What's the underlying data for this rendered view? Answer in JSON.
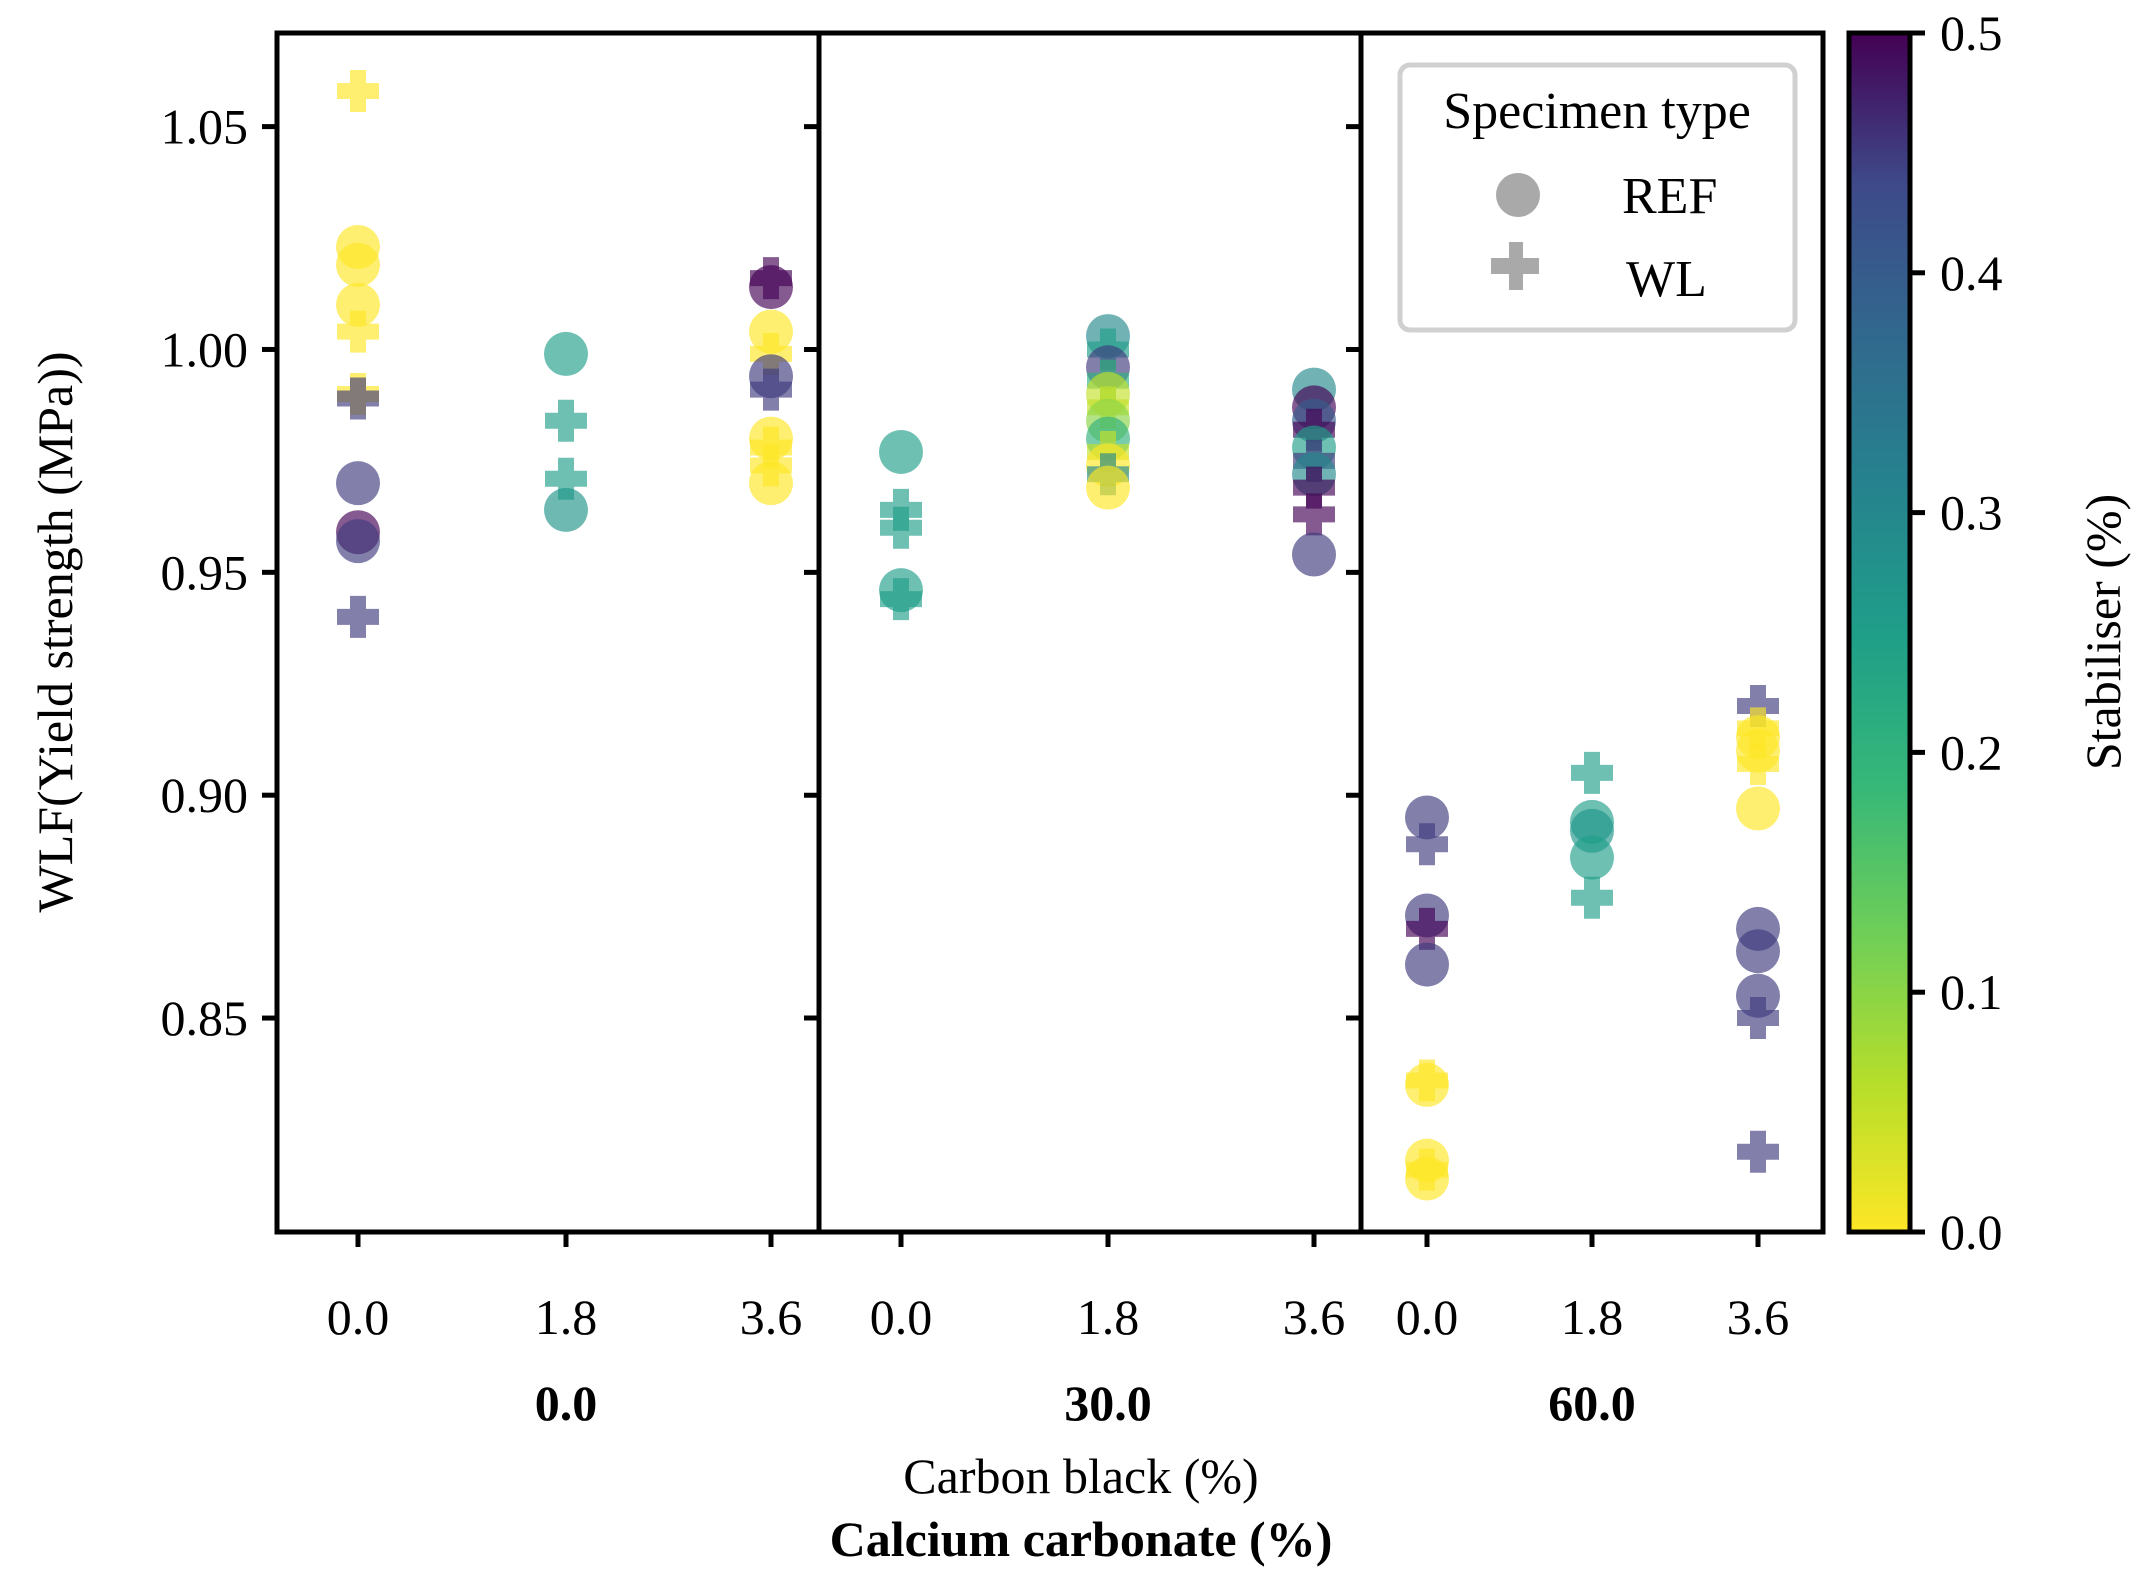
{
  "chart_data": {
    "type": "scatter",
    "ylabel": "WLF(Yield strength (MPa))",
    "xlabel_inner": "Carbon black (%)",
    "xlabel_outer": "Calcium carbonate (%)",
    "ylim": [
      0.802,
      1.071
    ],
    "yticks": [
      "0.85",
      "0.90",
      "0.95",
      "1.00",
      "1.05"
    ],
    "ytick_values": [
      0.85,
      0.9,
      0.95,
      1.0,
      1.05
    ],
    "groups": [
      "0.0",
      "30.0",
      "60.0"
    ],
    "subcategories": [
      "0.0",
      "1.8",
      "3.6"
    ],
    "legend": {
      "title": "Specimen type",
      "items": [
        {
          "label": "REF",
          "marker": "circle"
        },
        {
          "label": "WL",
          "marker": "plus"
        }
      ],
      "location": "upper-right of third panel"
    },
    "colorbar": {
      "label": "Stabiliser (%)",
      "range": [
        0.0,
        0.5
      ],
      "ticks": [
        "0.0",
        "0.1",
        "0.2",
        "0.3",
        "0.4",
        "0.5"
      ],
      "tick_values": [
        0.0,
        0.1,
        0.2,
        0.3,
        0.4,
        0.5
      ],
      "colormap": "viridis_r"
    },
    "points": [
      {
        "g": 0,
        "cb": 0,
        "t": "WL",
        "s": 0.0,
        "y": 1.058
      },
      {
        "g": 0,
        "cb": 0,
        "t": "REF",
        "s": 0.0,
        "y": 1.023
      },
      {
        "g": 0,
        "cb": 0,
        "t": "REF",
        "s": 0.0,
        "y": 1.019
      },
      {
        "g": 0,
        "cb": 0,
        "t": "REF",
        "s": 0.0,
        "y": 1.01
      },
      {
        "g": 0,
        "cb": 0,
        "t": "WL",
        "s": 0.0,
        "y": 1.004
      },
      {
        "g": 0,
        "cb": 0,
        "t": "WL",
        "s": 0.0,
        "y": 0.99
      },
      {
        "g": 0,
        "cb": 0,
        "t": "WL",
        "s": 0.45,
        "y": 0.989
      },
      {
        "g": 0,
        "cb": 0,
        "t": "REF",
        "s": 0.45,
        "y": 0.97
      },
      {
        "g": 0,
        "cb": 0,
        "t": "REF",
        "s": 0.5,
        "y": 0.959
      },
      {
        "g": 0,
        "cb": 0,
        "t": "REF",
        "s": 0.45,
        "y": 0.957
      },
      {
        "g": 0,
        "cb": 0,
        "t": "WL",
        "s": 0.45,
        "y": 0.94
      },
      {
        "g": 0,
        "cb": 1,
        "t": "REF",
        "s": 0.25,
        "y": 0.999
      },
      {
        "g": 0,
        "cb": 1,
        "t": "WL",
        "s": 0.25,
        "y": 0.984
      },
      {
        "g": 0,
        "cb": 1,
        "t": "WL",
        "s": 0.25,
        "y": 0.971
      },
      {
        "g": 0,
        "cb": 1,
        "t": "REF",
        "s": 0.27,
        "y": 0.964
      },
      {
        "g": 0,
        "cb": 2,
        "t": "WL",
        "s": 0.5,
        "y": 1.016
      },
      {
        "g": 0,
        "cb": 2,
        "t": "REF",
        "s": 0.5,
        "y": 1.014
      },
      {
        "g": 0,
        "cb": 2,
        "t": "REF",
        "s": 0.0,
        "y": 1.004
      },
      {
        "g": 0,
        "cb": 2,
        "t": "WL",
        "s": 0.0,
        "y": 0.999
      },
      {
        "g": 0,
        "cb": 2,
        "t": "REF",
        "s": 0.45,
        "y": 0.994
      },
      {
        "g": 0,
        "cb": 2,
        "t": "WL",
        "s": 0.45,
        "y": 0.991
      },
      {
        "g": 0,
        "cb": 2,
        "t": "REF",
        "s": 0.0,
        "y": 0.98
      },
      {
        "g": 0,
        "cb": 2,
        "t": "WL",
        "s": 0.0,
        "y": 0.978
      },
      {
        "g": 0,
        "cb": 2,
        "t": "WL",
        "s": 0.0,
        "y": 0.974
      },
      {
        "g": 0,
        "cb": 2,
        "t": "REF",
        "s": 0.0,
        "y": 0.97
      },
      {
        "g": 1,
        "cb": 0,
        "t": "REF",
        "s": 0.25,
        "y": 0.977
      },
      {
        "g": 1,
        "cb": 0,
        "t": "WL",
        "s": 0.25,
        "y": 0.964
      },
      {
        "g": 1,
        "cb": 0,
        "t": "WL",
        "s": 0.25,
        "y": 0.96
      },
      {
        "g": 1,
        "cb": 0,
        "t": "REF",
        "s": 0.25,
        "y": 0.946
      },
      {
        "g": 1,
        "cb": 0,
        "t": "WL",
        "s": 0.25,
        "y": 0.944
      },
      {
        "g": 1,
        "cb": 1,
        "t": "REF",
        "s": 0.3,
        "y": 1.003
      },
      {
        "g": 1,
        "cb": 1,
        "t": "WL",
        "s": 0.25,
        "y": 1.0
      },
      {
        "g": 1,
        "cb": 1,
        "t": "REF",
        "s": 0.45,
        "y": 0.996
      },
      {
        "g": 1,
        "cb": 1,
        "t": "WL",
        "s": 0.2,
        "y": 0.993
      },
      {
        "g": 1,
        "cb": 1,
        "t": "REF",
        "s": 0.05,
        "y": 0.99
      },
      {
        "g": 1,
        "cb": 1,
        "t": "WL",
        "s": 0.05,
        "y": 0.987
      },
      {
        "g": 1,
        "cb": 1,
        "t": "REF",
        "s": 0.1,
        "y": 0.984
      },
      {
        "g": 1,
        "cb": 1,
        "t": "REF",
        "s": 0.2,
        "y": 0.98
      },
      {
        "g": 1,
        "cb": 1,
        "t": "WL",
        "s": 0.05,
        "y": 0.977
      },
      {
        "g": 1,
        "cb": 1,
        "t": "REF",
        "s": 0.0,
        "y": 0.974
      },
      {
        "g": 1,
        "cb": 1,
        "t": "WL",
        "s": 0.3,
        "y": 0.972
      },
      {
        "g": 1,
        "cb": 1,
        "t": "REF",
        "s": 0.0,
        "y": 0.969
      },
      {
        "g": 1,
        "cb": 2,
        "t": "REF",
        "s": 0.3,
        "y": 0.991
      },
      {
        "g": 1,
        "cb": 2,
        "t": "REF",
        "s": 0.5,
        "y": 0.987
      },
      {
        "g": 1,
        "cb": 2,
        "t": "REF",
        "s": 0.4,
        "y": 0.984
      },
      {
        "g": 1,
        "cb": 2,
        "t": "WL",
        "s": 0.5,
        "y": 0.982
      },
      {
        "g": 1,
        "cb": 2,
        "t": "REF",
        "s": 0.25,
        "y": 0.978
      },
      {
        "g": 1,
        "cb": 2,
        "t": "WL",
        "s": 0.45,
        "y": 0.975
      },
      {
        "g": 1,
        "cb": 2,
        "t": "REF",
        "s": 0.3,
        "y": 0.972
      },
      {
        "g": 1,
        "cb": 2,
        "t": "WL",
        "s": 0.5,
        "y": 0.969
      },
      {
        "g": 1,
        "cb": 2,
        "t": "WL",
        "s": 0.5,
        "y": 0.963
      },
      {
        "g": 1,
        "cb": 2,
        "t": "REF",
        "s": 0.45,
        "y": 0.954
      },
      {
        "g": 2,
        "cb": 0,
        "t": "REF",
        "s": 0.45,
        "y": 0.895
      },
      {
        "g": 2,
        "cb": 0,
        "t": "WL",
        "s": 0.45,
        "y": 0.889
      },
      {
        "g": 2,
        "cb": 0,
        "t": "REF",
        "s": 0.45,
        "y": 0.873
      },
      {
        "g": 2,
        "cb": 0,
        "t": "WL",
        "s": 0.5,
        "y": 0.87
      },
      {
        "g": 2,
        "cb": 0,
        "t": "REF",
        "s": 0.45,
        "y": 0.862
      },
      {
        "g": 2,
        "cb": 0,
        "t": "WL",
        "s": 0.0,
        "y": 0.836
      },
      {
        "g": 2,
        "cb": 0,
        "t": "REF",
        "s": 0.0,
        "y": 0.835
      },
      {
        "g": 2,
        "cb": 0,
        "t": "REF",
        "s": 0.0,
        "y": 0.818
      },
      {
        "g": 2,
        "cb": 0,
        "t": "WL",
        "s": 0.0,
        "y": 0.816
      },
      {
        "g": 2,
        "cb": 0,
        "t": "REF",
        "s": 0.0,
        "y": 0.814
      },
      {
        "g": 2,
        "cb": 1,
        "t": "WL",
        "s": 0.25,
        "y": 0.905
      },
      {
        "g": 2,
        "cb": 1,
        "t": "REF",
        "s": 0.25,
        "y": 0.894
      },
      {
        "g": 2,
        "cb": 1,
        "t": "REF",
        "s": 0.27,
        "y": 0.892
      },
      {
        "g": 2,
        "cb": 1,
        "t": "REF",
        "s": 0.25,
        "y": 0.886
      },
      {
        "g": 2,
        "cb": 1,
        "t": "WL",
        "s": 0.25,
        "y": 0.877
      },
      {
        "g": 2,
        "cb": 2,
        "t": "WL",
        "s": 0.45,
        "y": 0.92
      },
      {
        "g": 2,
        "cb": 2,
        "t": "WL",
        "s": 0.0,
        "y": 0.915
      },
      {
        "g": 2,
        "cb": 2,
        "t": "REF",
        "s": 0.0,
        "y": 0.913
      },
      {
        "g": 2,
        "cb": 2,
        "t": "REF",
        "s": 0.0,
        "y": 0.91
      },
      {
        "g": 2,
        "cb": 2,
        "t": "WL",
        "s": 0.0,
        "y": 0.907
      },
      {
        "g": 2,
        "cb": 2,
        "t": "REF",
        "s": 0.0,
        "y": 0.897
      },
      {
        "g": 2,
        "cb": 2,
        "t": "REF",
        "s": 0.45,
        "y": 0.87
      },
      {
        "g": 2,
        "cb": 2,
        "t": "REF",
        "s": 0.45,
        "y": 0.865
      },
      {
        "g": 2,
        "cb": 2,
        "t": "REF",
        "s": 0.45,
        "y": 0.855
      },
      {
        "g": 2,
        "cb": 2,
        "t": "WL",
        "s": 0.45,
        "y": 0.85
      },
      {
        "g": 2,
        "cb": 2,
        "t": "WL",
        "s": 0.45,
        "y": 0.82
      }
    ]
  }
}
